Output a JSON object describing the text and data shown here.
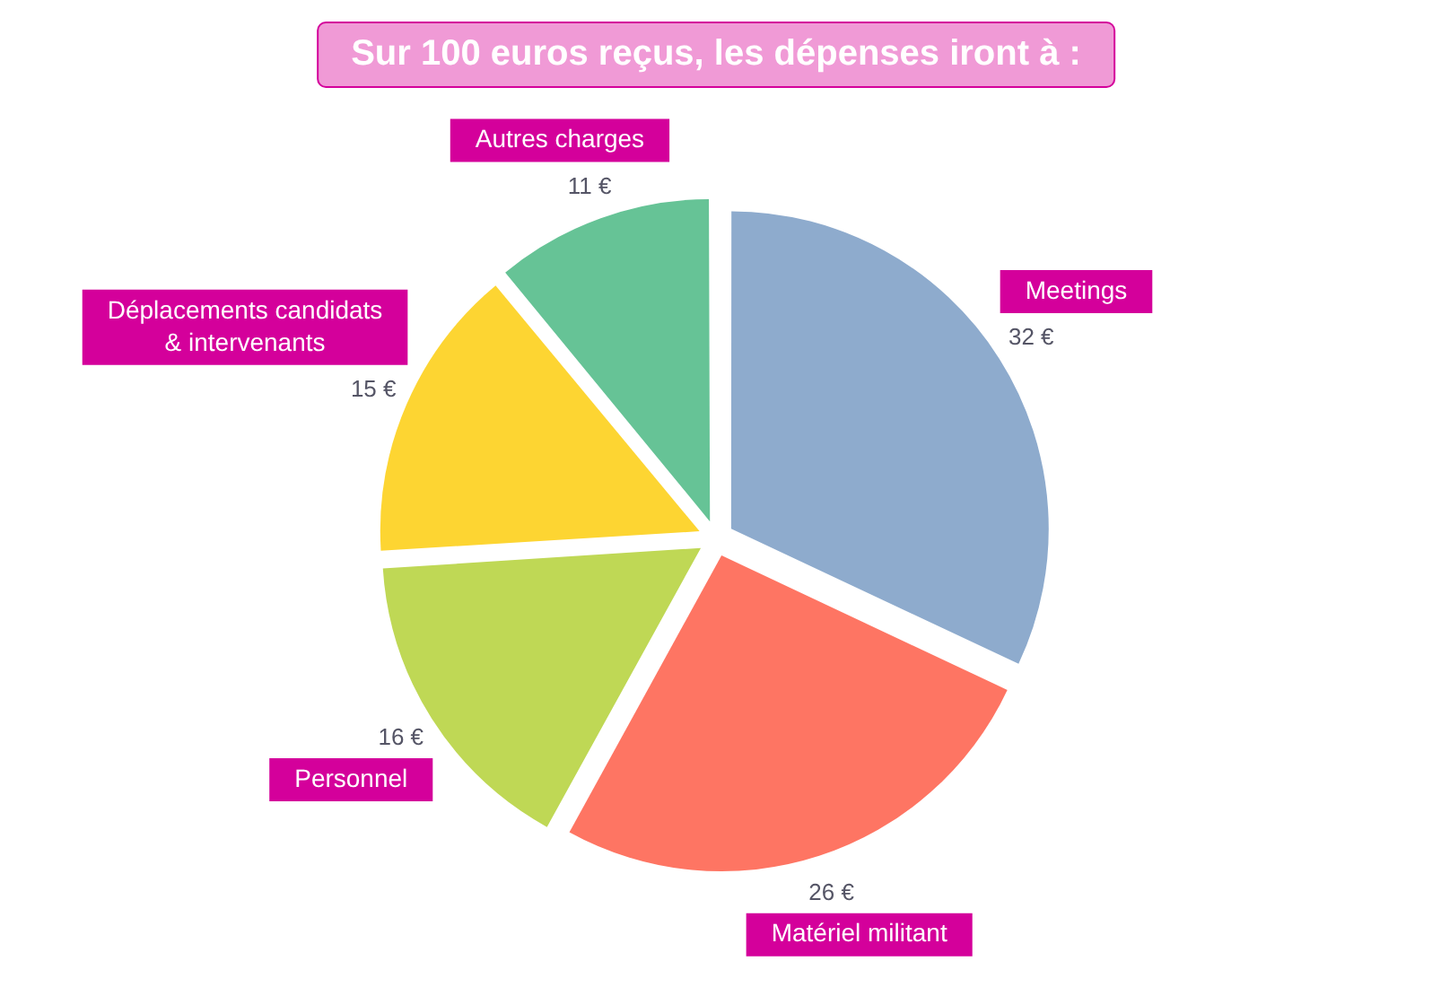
{
  "chart_data": {
    "type": "pie",
    "title": "Sur 100 euros reçus, les dépenses iront à :",
    "categories": [
      "Meetings",
      "Matériel militant",
      "Personnel",
      "Déplacements candidats & intervenants",
      "Autres charges"
    ],
    "values": [
      32,
      26,
      16,
      15,
      11
    ],
    "colors": [
      "#8eabcd",
      "#fe7563",
      "#bfd855",
      "#fdd532",
      "#66c396"
    ],
    "value_labels": [
      "32 €",
      "26 €",
      "16 €",
      "15 €",
      "11 €"
    ]
  }
}
